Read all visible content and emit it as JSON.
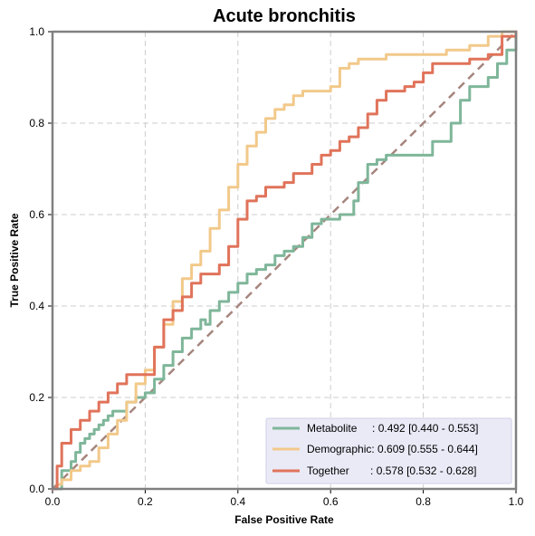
{
  "chart_data": {
    "type": "line",
    "title": "Acute bronchitis",
    "xlabel": "False Positive Rate",
    "ylabel": "True Positive Rate",
    "xlim": [
      0,
      1
    ],
    "ylim": [
      0,
      1
    ],
    "xticks": [
      "0.0",
      "0.2",
      "0.4",
      "0.6",
      "0.8",
      "1.0"
    ],
    "yticks": [
      "0.0",
      "0.2",
      "0.4",
      "0.6",
      "0.8",
      "1.0"
    ],
    "grid": true,
    "legend_position": "bottom-right",
    "diagonal": {
      "x": [
        0,
        1
      ],
      "y": [
        0,
        1
      ],
      "color": "#a5857d",
      "style": "dashed"
    },
    "series": [
      {
        "name": "Metabolite",
        "legend_label": "Metabolite     : 0.492 [0.440 - 0.553]",
        "color": "#7fb69a",
        "x": [
          0,
          0.02,
          0.04,
          0.05,
          0.06,
          0.07,
          0.08,
          0.09,
          0.1,
          0.11,
          0.12,
          0.13,
          0.14,
          0.16,
          0.18,
          0.2,
          0.22,
          0.24,
          0.26,
          0.28,
          0.3,
          0.32,
          0.33,
          0.34,
          0.36,
          0.38,
          0.4,
          0.42,
          0.44,
          0.46,
          0.48,
          0.5,
          0.52,
          0.54,
          0.56,
          0.58,
          0.6,
          0.62,
          0.64,
          0.65,
          0.66,
          0.68,
          0.7,
          0.72,
          0.74,
          0.76,
          0.8,
          0.82,
          0.84,
          0.86,
          0.88,
          0.9,
          0.92,
          0.94,
          0.96,
          0.98,
          1.0
        ],
        "y": [
          0,
          0.04,
          0.06,
          0.08,
          0.1,
          0.11,
          0.12,
          0.13,
          0.14,
          0.15,
          0.16,
          0.17,
          0.17,
          0.19,
          0.2,
          0.21,
          0.24,
          0.27,
          0.3,
          0.33,
          0.35,
          0.37,
          0.36,
          0.39,
          0.41,
          0.43,
          0.45,
          0.47,
          0.48,
          0.49,
          0.51,
          0.52,
          0.53,
          0.55,
          0.58,
          0.59,
          0.59,
          0.6,
          0.6,
          0.63,
          0.67,
          0.71,
          0.72,
          0.73,
          0.73,
          0.73,
          0.73,
          0.76,
          0.76,
          0.8,
          0.85,
          0.88,
          0.88,
          0.9,
          0.93,
          0.96,
          1.0
        ]
      },
      {
        "name": "Demographic",
        "legend_label": "Demographic: 0.609 [0.555 - 0.644]",
        "color": "#f2c98a",
        "x": [
          0,
          0.01,
          0.02,
          0.04,
          0.06,
          0.08,
          0.1,
          0.12,
          0.14,
          0.16,
          0.18,
          0.2,
          0.22,
          0.24,
          0.26,
          0.28,
          0.3,
          0.32,
          0.34,
          0.36,
          0.38,
          0.4,
          0.42,
          0.44,
          0.46,
          0.48,
          0.5,
          0.52,
          0.54,
          0.56,
          0.58,
          0.6,
          0.62,
          0.64,
          0.66,
          0.68,
          0.7,
          0.72,
          0.74,
          0.76,
          0.78,
          0.8,
          0.85,
          0.9,
          0.94,
          0.97,
          1.0
        ],
        "y": [
          0,
          0.01,
          0.02,
          0.04,
          0.05,
          0.06,
          0.09,
          0.12,
          0.15,
          0.19,
          0.23,
          0.26,
          0.31,
          0.36,
          0.41,
          0.46,
          0.49,
          0.52,
          0.57,
          0.61,
          0.66,
          0.71,
          0.75,
          0.78,
          0.81,
          0.83,
          0.84,
          0.86,
          0.87,
          0.87,
          0.87,
          0.88,
          0.92,
          0.93,
          0.94,
          0.94,
          0.94,
          0.95,
          0.95,
          0.95,
          0.95,
          0.95,
          0.96,
          0.97,
          0.99,
          1.0,
          1.0
        ]
      },
      {
        "name": "Together",
        "legend_label": "Together       : 0.578 [0.532 - 0.628]",
        "color": "#e0735a",
        "x": [
          0,
          0.01,
          0.02,
          0.04,
          0.06,
          0.08,
          0.1,
          0.12,
          0.14,
          0.16,
          0.18,
          0.2,
          0.22,
          0.24,
          0.26,
          0.28,
          0.3,
          0.32,
          0.34,
          0.36,
          0.38,
          0.4,
          0.42,
          0.44,
          0.46,
          0.48,
          0.5,
          0.52,
          0.54,
          0.56,
          0.58,
          0.6,
          0.62,
          0.64,
          0.66,
          0.68,
          0.7,
          0.72,
          0.74,
          0.76,
          0.78,
          0.8,
          0.82,
          0.86,
          0.9,
          0.94,
          0.97,
          1.0
        ],
        "y": [
          0,
          0.05,
          0.1,
          0.13,
          0.15,
          0.17,
          0.19,
          0.21,
          0.23,
          0.25,
          0.25,
          0.25,
          0.31,
          0.37,
          0.39,
          0.42,
          0.45,
          0.47,
          0.47,
          0.49,
          0.53,
          0.59,
          0.63,
          0.64,
          0.66,
          0.66,
          0.67,
          0.69,
          0.69,
          0.71,
          0.73,
          0.74,
          0.76,
          0.77,
          0.79,
          0.82,
          0.85,
          0.87,
          0.87,
          0.88,
          0.89,
          0.91,
          0.93,
          0.93,
          0.94,
          0.95,
          0.99,
          1.0
        ]
      }
    ]
  }
}
